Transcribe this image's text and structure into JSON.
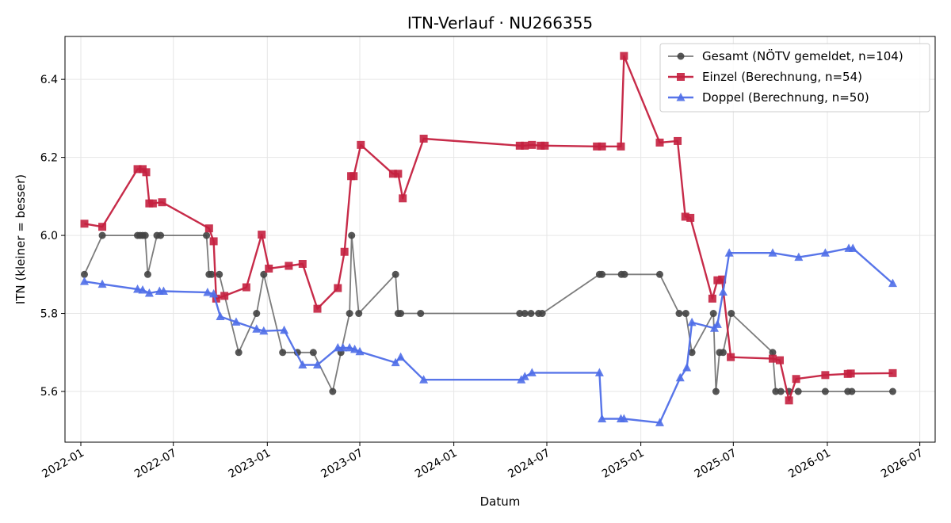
{
  "chart_data": {
    "type": "line",
    "title": "ITN-Verlauf · NU266355",
    "xlabel": "Datum",
    "ylabel": "ITN  (kleiner = besser)",
    "xlim": [
      "2021-12-01",
      "2026-07-31"
    ],
    "ylim": [
      5.47,
      6.51
    ],
    "yticks": [
      5.6,
      5.8,
      6.0,
      6.2,
      6.4
    ],
    "ytick_labels": [
      "5.6",
      "5.8",
      "6.0",
      "6.2",
      "6.4"
    ],
    "xticks": [
      "2022-01-01",
      "2022-07-01",
      "2023-01-01",
      "2023-07-01",
      "2024-01-01",
      "2024-07-01",
      "2025-01-01",
      "2025-07-01",
      "2026-01-01",
      "2026-07-01"
    ],
    "xtick_labels": [
      "2022-01",
      "2022-07",
      "2023-01",
      "2023-07",
      "2024-01",
      "2024-07",
      "2025-01",
      "2025-07",
      "2026-01",
      "2026-07"
    ],
    "grid": true,
    "legend_position": "top-right",
    "series": [
      {
        "name": "Gesamt (NÖTV gemeldet, n=104)",
        "color": "#444444",
        "marker": "circle",
        "points": [
          [
            "2022-01-08",
            5.9
          ],
          [
            "2022-02-12",
            6.0
          ],
          [
            "2022-04-22",
            6.0
          ],
          [
            "2022-04-27",
            6.0
          ],
          [
            "2022-05-02",
            6.0
          ],
          [
            "2022-05-07",
            6.0
          ],
          [
            "2022-05-12",
            5.9
          ],
          [
            "2022-05-30",
            6.0
          ],
          [
            "2022-06-06",
            6.0
          ],
          [
            "2022-09-04",
            6.0
          ],
          [
            "2022-09-09",
            5.9
          ],
          [
            "2022-09-14",
            5.9
          ],
          [
            "2022-09-29",
            5.9
          ],
          [
            "2022-11-06",
            5.7
          ],
          [
            "2022-12-11",
            5.8
          ],
          [
            "2022-12-25",
            5.9
          ],
          [
            "2023-01-31",
            5.7
          ],
          [
            "2023-03-01",
            5.7
          ],
          [
            "2023-04-01",
            5.7
          ],
          [
            "2023-05-09",
            5.6
          ],
          [
            "2023-05-25",
            5.7
          ],
          [
            "2023-06-11",
            5.8
          ],
          [
            "2023-06-15",
            6.0
          ],
          [
            "2023-06-29",
            5.8
          ],
          [
            "2023-09-09",
            5.9
          ],
          [
            "2023-09-14",
            5.8
          ],
          [
            "2023-09-19",
            5.8
          ],
          [
            "2023-10-28",
            5.8
          ],
          [
            "2024-05-09",
            5.8
          ],
          [
            "2024-05-19",
            5.8
          ],
          [
            "2024-05-31",
            5.8
          ],
          [
            "2024-06-15",
            5.8
          ],
          [
            "2024-06-22",
            5.8
          ],
          [
            "2024-10-12",
            5.9
          ],
          [
            "2024-10-17",
            5.9
          ],
          [
            "2024-11-24",
            5.9
          ],
          [
            "2024-11-30",
            5.9
          ],
          [
            "2025-02-07",
            5.9
          ],
          [
            "2025-03-17",
            5.8
          ],
          [
            "2025-03-30",
            5.8
          ],
          [
            "2025-04-11",
            5.7
          ],
          [
            "2025-05-23",
            5.8
          ],
          [
            "2025-05-28",
            5.6
          ],
          [
            "2025-06-04",
            5.7
          ],
          [
            "2025-06-11",
            5.7
          ],
          [
            "2025-06-27",
            5.8
          ],
          [
            "2025-09-16",
            5.7
          ],
          [
            "2025-09-22",
            5.6
          ],
          [
            "2025-10-02",
            5.6
          ],
          [
            "2025-10-18",
            5.6
          ],
          [
            "2025-11-05",
            5.6
          ],
          [
            "2025-12-28",
            5.6
          ],
          [
            "2026-02-10",
            5.6
          ],
          [
            "2026-02-18",
            5.6
          ],
          [
            "2026-05-09",
            5.6
          ]
        ]
      },
      {
        "name": "Einzel (Berechnung, n=54)",
        "color": "#c4203f",
        "marker": "square",
        "points": [
          [
            "2022-01-08",
            6.03
          ],
          [
            "2022-02-12",
            6.022
          ],
          [
            "2022-04-22",
            6.17
          ],
          [
            "2022-05-02",
            6.17
          ],
          [
            "2022-05-09",
            6.162
          ],
          [
            "2022-05-15",
            6.082
          ],
          [
            "2022-05-22",
            6.082
          ],
          [
            "2022-06-09",
            6.085
          ],
          [
            "2022-09-09",
            6.018
          ],
          [
            "2022-09-18",
            5.985
          ],
          [
            "2022-09-23",
            5.838
          ],
          [
            "2022-10-09",
            5.845
          ],
          [
            "2022-11-21",
            5.867
          ],
          [
            "2022-12-21",
            6.002
          ],
          [
            "2023-01-04",
            5.915
          ],
          [
            "2023-02-12",
            5.922
          ],
          [
            "2023-03-11",
            5.927
          ],
          [
            "2023-04-09",
            5.812
          ],
          [
            "2023-05-19",
            5.865
          ],
          [
            "2023-06-01",
            5.958
          ],
          [
            "2023-06-14",
            6.152
          ],
          [
            "2023-06-19",
            6.152
          ],
          [
            "2023-07-03",
            6.232
          ],
          [
            "2023-09-04",
            6.158
          ],
          [
            "2023-09-14",
            6.158
          ],
          [
            "2023-09-23",
            6.095
          ],
          [
            "2023-11-03",
            6.248
          ],
          [
            "2024-05-09",
            6.23
          ],
          [
            "2024-05-19",
            6.23
          ],
          [
            "2024-06-02",
            6.232
          ],
          [
            "2024-06-19",
            6.23
          ],
          [
            "2024-06-27",
            6.23
          ],
          [
            "2024-10-07",
            6.228
          ],
          [
            "2024-10-17",
            6.228
          ],
          [
            "2024-11-23",
            6.228
          ],
          [
            "2024-11-29",
            6.46
          ],
          [
            "2025-02-07",
            6.238
          ],
          [
            "2025-03-14",
            6.242
          ],
          [
            "2025-03-29",
            6.048
          ],
          [
            "2025-04-08",
            6.045
          ],
          [
            "2025-05-21",
            5.838
          ],
          [
            "2025-05-31",
            5.885
          ],
          [
            "2025-06-09",
            5.887
          ],
          [
            "2025-06-26",
            5.688
          ],
          [
            "2025-09-16",
            5.684
          ],
          [
            "2025-09-30",
            5.68
          ],
          [
            "2025-10-18",
            5.577
          ],
          [
            "2025-11-01",
            5.632
          ],
          [
            "2025-12-28",
            5.642
          ],
          [
            "2026-02-10",
            5.645
          ],
          [
            "2026-02-16",
            5.646
          ],
          [
            "2026-05-09",
            5.647
          ]
        ]
      },
      {
        "name": "Doppel (Berechnung, n=50)",
        "color": "#4f6ee8",
        "marker": "triangle",
        "points": [
          [
            "2022-01-08",
            5.882
          ],
          [
            "2022-02-12",
            5.875
          ],
          [
            "2022-04-22",
            5.862
          ],
          [
            "2022-05-02",
            5.86
          ],
          [
            "2022-05-15",
            5.852
          ],
          [
            "2022-06-04",
            5.857
          ],
          [
            "2022-06-12",
            5.857
          ],
          [
            "2022-09-06",
            5.854
          ],
          [
            "2022-09-18",
            5.85
          ],
          [
            "2022-10-01",
            5.792
          ],
          [
            "2022-11-01",
            5.778
          ],
          [
            "2022-12-11",
            5.76
          ],
          [
            "2022-12-25",
            5.755
          ],
          [
            "2023-02-03",
            5.757
          ],
          [
            "2023-03-11",
            5.668
          ],
          [
            "2023-04-09",
            5.668
          ],
          [
            "2023-05-19",
            5.712
          ],
          [
            "2023-05-29",
            5.712
          ],
          [
            "2023-06-11",
            5.712
          ],
          [
            "2023-06-21",
            5.708
          ],
          [
            "2023-07-01",
            5.702
          ],
          [
            "2023-09-09",
            5.674
          ],
          [
            "2023-09-19",
            5.688
          ],
          [
            "2023-11-03",
            5.63
          ],
          [
            "2024-05-12",
            5.63
          ],
          [
            "2024-05-19",
            5.638
          ],
          [
            "2024-06-02",
            5.648
          ],
          [
            "2024-10-12",
            5.648
          ],
          [
            "2024-10-17",
            5.53
          ],
          [
            "2024-11-23",
            5.53
          ],
          [
            "2024-11-29",
            5.53
          ],
          [
            "2025-02-07",
            5.52
          ],
          [
            "2025-03-19",
            5.635
          ],
          [
            "2025-04-01",
            5.661
          ],
          [
            "2025-04-11",
            5.777
          ],
          [
            "2025-05-25",
            5.762
          ],
          [
            "2025-05-31",
            5.772
          ],
          [
            "2025-06-11",
            5.855
          ],
          [
            "2025-06-23",
            5.955
          ],
          [
            "2025-09-16",
            5.955
          ],
          [
            "2025-11-06",
            5.944
          ],
          [
            "2025-12-28",
            5.955
          ],
          [
            "2026-02-12",
            5.967
          ],
          [
            "2026-02-20",
            5.967
          ],
          [
            "2026-05-09",
            5.877
          ]
        ]
      }
    ]
  }
}
